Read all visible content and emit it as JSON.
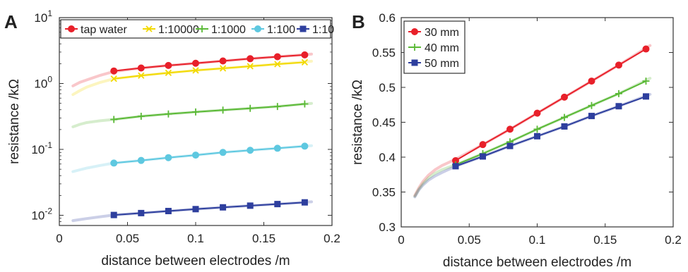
{
  "chart_data": [
    {
      "panel": "A",
      "type": "line",
      "xlabel": "distance between electrodes /m",
      "ylabel": "resistance /kΩ",
      "yscale": "log",
      "xlim": [
        0,
        0.2
      ],
      "ylim": [
        0.007,
        10
      ],
      "x_ticks": [
        "0",
        "0.05",
        "0.1",
        "0.15",
        "0.2"
      ],
      "x_tick_values": [
        0,
        0.05,
        0.1,
        0.15,
        0.2
      ],
      "y_ticks": [
        {
          "base": "10",
          "exp": "-2",
          "value": 0.01
        },
        {
          "base": "10",
          "exp": "-1",
          "value": 0.1
        },
        {
          "base": "10",
          "exp": "0",
          "value": 1
        },
        {
          "base": "10",
          "exp": "1",
          "value": 10
        }
      ],
      "legend_position": "top",
      "grid": false,
      "x": [
        0.04,
        0.06,
        0.08,
        0.1,
        0.12,
        0.14,
        0.16,
        0.18
      ],
      "series": [
        {
          "name": "tap water",
          "color": "#e8202a",
          "marker": "circle",
          "values": [
            1.55,
            1.72,
            1.88,
            2.03,
            2.2,
            2.38,
            2.55,
            2.72
          ],
          "fit_x": [
            0.01,
            0.015,
            0.02,
            0.03,
            0.04,
            0.06,
            0.08,
            0.1,
            0.12,
            0.14,
            0.16,
            0.185
          ],
          "fit_y": [
            0.92,
            1.04,
            1.13,
            1.33,
            1.52,
            1.72,
            1.88,
            2.03,
            2.2,
            2.38,
            2.55,
            2.8
          ]
        },
        {
          "name": "1:10000",
          "color": "#f2d900",
          "marker": "x",
          "values": [
            1.18,
            1.32,
            1.45,
            1.58,
            1.7,
            1.83,
            1.97,
            2.1
          ],
          "fit_x": [
            0.01,
            0.015,
            0.02,
            0.03,
            0.04,
            0.06,
            0.08,
            0.1,
            0.12,
            0.14,
            0.16,
            0.185
          ],
          "fit_y": [
            0.68,
            0.78,
            0.88,
            1.04,
            1.18,
            1.32,
            1.45,
            1.58,
            1.7,
            1.83,
            1.97,
            2.18
          ]
        },
        {
          "name": "1:1000",
          "color": "#5ab936",
          "marker": "plus",
          "values": [
            0.285,
            0.318,
            0.345,
            0.37,
            0.395,
            0.42,
            0.448,
            0.49
          ],
          "fit_x": [
            0.01,
            0.015,
            0.02,
            0.03,
            0.04,
            0.06,
            0.08,
            0.1,
            0.12,
            0.14,
            0.16,
            0.185
          ],
          "fit_y": [
            0.22,
            0.24,
            0.255,
            0.272,
            0.285,
            0.318,
            0.345,
            0.37,
            0.395,
            0.42,
            0.448,
            0.5
          ]
        },
        {
          "name": "1:100",
          "color": "#5ec8e0",
          "marker": "circle",
          "values": [
            0.062,
            0.068,
            0.075,
            0.082,
            0.09,
            0.097,
            0.104,
            0.112
          ],
          "fit_x": [
            0.01,
            0.015,
            0.02,
            0.03,
            0.04,
            0.06,
            0.08,
            0.1,
            0.12,
            0.14,
            0.16,
            0.185
          ],
          "fit_y": [
            0.046,
            0.049,
            0.052,
            0.057,
            0.062,
            0.068,
            0.075,
            0.082,
            0.09,
            0.097,
            0.104,
            0.114
          ]
        },
        {
          "name": "1:10",
          "color": "#2e3f9e",
          "marker": "square",
          "values": [
            0.0101,
            0.0108,
            0.0116,
            0.0124,
            0.0132,
            0.014,
            0.0148,
            0.0157
          ],
          "fit_x": [
            0.01,
            0.015,
            0.02,
            0.03,
            0.04,
            0.06,
            0.08,
            0.1,
            0.12,
            0.14,
            0.16,
            0.185
          ],
          "fit_y": [
            0.0083,
            0.0086,
            0.0089,
            0.0095,
            0.0101,
            0.0108,
            0.0116,
            0.0124,
            0.0132,
            0.014,
            0.0148,
            0.016
          ]
        }
      ]
    },
    {
      "panel": "B",
      "type": "line",
      "xlabel": "distance between electrodes /m",
      "ylabel": "resistance /kΩ",
      "yscale": "linear",
      "xlim": [
        0,
        0.2
      ],
      "ylim": [
        0.3,
        0.6
      ],
      "x_ticks": [
        "0",
        "0.05",
        "0.1",
        "0.15",
        "0.2"
      ],
      "x_tick_values": [
        0,
        0.05,
        0.1,
        0.15,
        0.2
      ],
      "y_ticks": [
        "0.3",
        "0.35",
        "0.4",
        "0.45",
        "0.5",
        "0.55",
        "0.6"
      ],
      "y_tick_values": [
        0.3,
        0.35,
        0.4,
        0.45,
        0.5,
        0.55,
        0.6
      ],
      "legend_position": "top-left",
      "grid": false,
      "x": [
        0.04,
        0.06,
        0.08,
        0.1,
        0.12,
        0.14,
        0.16,
        0.18
      ],
      "series": [
        {
          "name": "30 mm",
          "color": "#e8202a",
          "marker": "circle",
          "values": [
            0.395,
            0.418,
            0.44,
            0.463,
            0.486,
            0.509,
            0.532,
            0.555
          ],
          "fit_x": [
            0.01,
            0.013,
            0.016,
            0.02,
            0.025,
            0.03,
            0.04,
            0.06,
            0.08,
            0.1,
            0.12,
            0.14,
            0.16,
            0.183
          ],
          "fit_y": [
            0.345,
            0.356,
            0.365,
            0.374,
            0.382,
            0.388,
            0.397,
            0.418,
            0.44,
            0.463,
            0.486,
            0.509,
            0.532,
            0.56
          ]
        },
        {
          "name": "40 mm",
          "color": "#5ab936",
          "marker": "plus",
          "values": [
            0.389,
            0.405,
            0.422,
            0.44,
            0.457,
            0.474,
            0.491,
            0.509
          ],
          "fit_x": [
            0.01,
            0.013,
            0.016,
            0.02,
            0.025,
            0.03,
            0.04,
            0.06,
            0.08,
            0.1,
            0.12,
            0.14,
            0.16,
            0.183
          ],
          "fit_y": [
            0.344,
            0.354,
            0.362,
            0.37,
            0.377,
            0.382,
            0.389,
            0.405,
            0.422,
            0.44,
            0.457,
            0.474,
            0.491,
            0.513
          ]
        },
        {
          "name": "50 mm",
          "color": "#2e3f9e",
          "marker": "square",
          "values": [
            0.387,
            0.401,
            0.416,
            0.43,
            0.444,
            0.459,
            0.473,
            0.487
          ],
          "fit_x": [
            0.01,
            0.013,
            0.016,
            0.02,
            0.025,
            0.03,
            0.04,
            0.06,
            0.08,
            0.1,
            0.12,
            0.14,
            0.16,
            0.183
          ],
          "fit_y": [
            0.343,
            0.353,
            0.36,
            0.367,
            0.373,
            0.378,
            0.387,
            0.401,
            0.416,
            0.43,
            0.444,
            0.459,
            0.473,
            0.49
          ]
        }
      ]
    }
  ]
}
